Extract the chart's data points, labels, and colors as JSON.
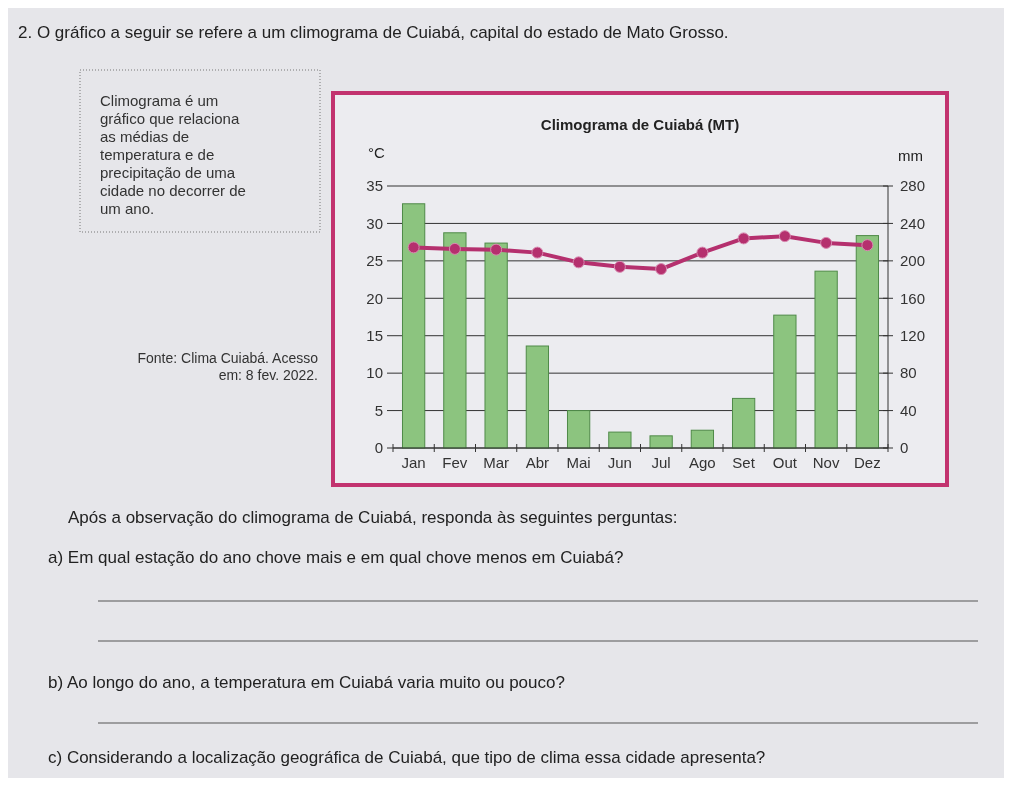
{
  "chart_data": {
    "type": "bar",
    "title": "Climograma de Cuiabá (MT)",
    "ylabel": "°C",
    "y2label": "mm",
    "categories": [
      "Jan",
      "Fev",
      "Mar",
      "Abr",
      "Mai",
      "Jun",
      "Jul",
      "Ago",
      "Set",
      "Out",
      "Nov",
      "Dez"
    ],
    "series": [
      {
        "axis": "y2",
        "color": "#8cc47f",
        "values": [
          261,
          230,
          219,
          109,
          40,
          17,
          13,
          19,
          53,
          142,
          189,
          227
        ]
      },
      {
        "type": "line",
        "axis": "y",
        "color": "#b5306e",
        "values": [
          26.8,
          26.6,
          26.5,
          26.1,
          24.8,
          24.2,
          23.9,
          26.1,
          28.0,
          28.3,
          27.4,
          27.1
        ]
      }
    ],
    "ylim": [
      0,
      35
    ],
    "yticks": [
      0,
      5,
      10,
      15,
      20,
      25,
      30,
      35
    ],
    "y2lim": [
      0,
      280
    ],
    "y2ticks": [
      0,
      40,
      80,
      120,
      160,
      200,
      240,
      280
    ],
    "grid": "y",
    "marker": "circle",
    "line_style": "solid",
    "annotations": [
      "2. O gráfico a seguir se refere a um climograma de Cuiabá, capital do estado de Mato Grosso.",
      "Climograma é um gráfico que relaciona as médias de temperatura e de precipitação de uma cidade no decorrer de um ano.",
      "Fonte: Clima Cuiabá. Acesso em: 8 fev. 2022.",
      "Após a observação do climograma de Cuiabá, responda às seguintes perguntas:",
      "a) Em qual estação do ano chove mais e em qual chove menos em Cuiabá?",
      "b) Ao longo do ano, a temperatura em Cuiabá varia muito ou pouco?",
      "c) Considerando a localização geográfica de Cuiabá, que tipo de clima essa cidade apresenta?"
    ]
  }
}
